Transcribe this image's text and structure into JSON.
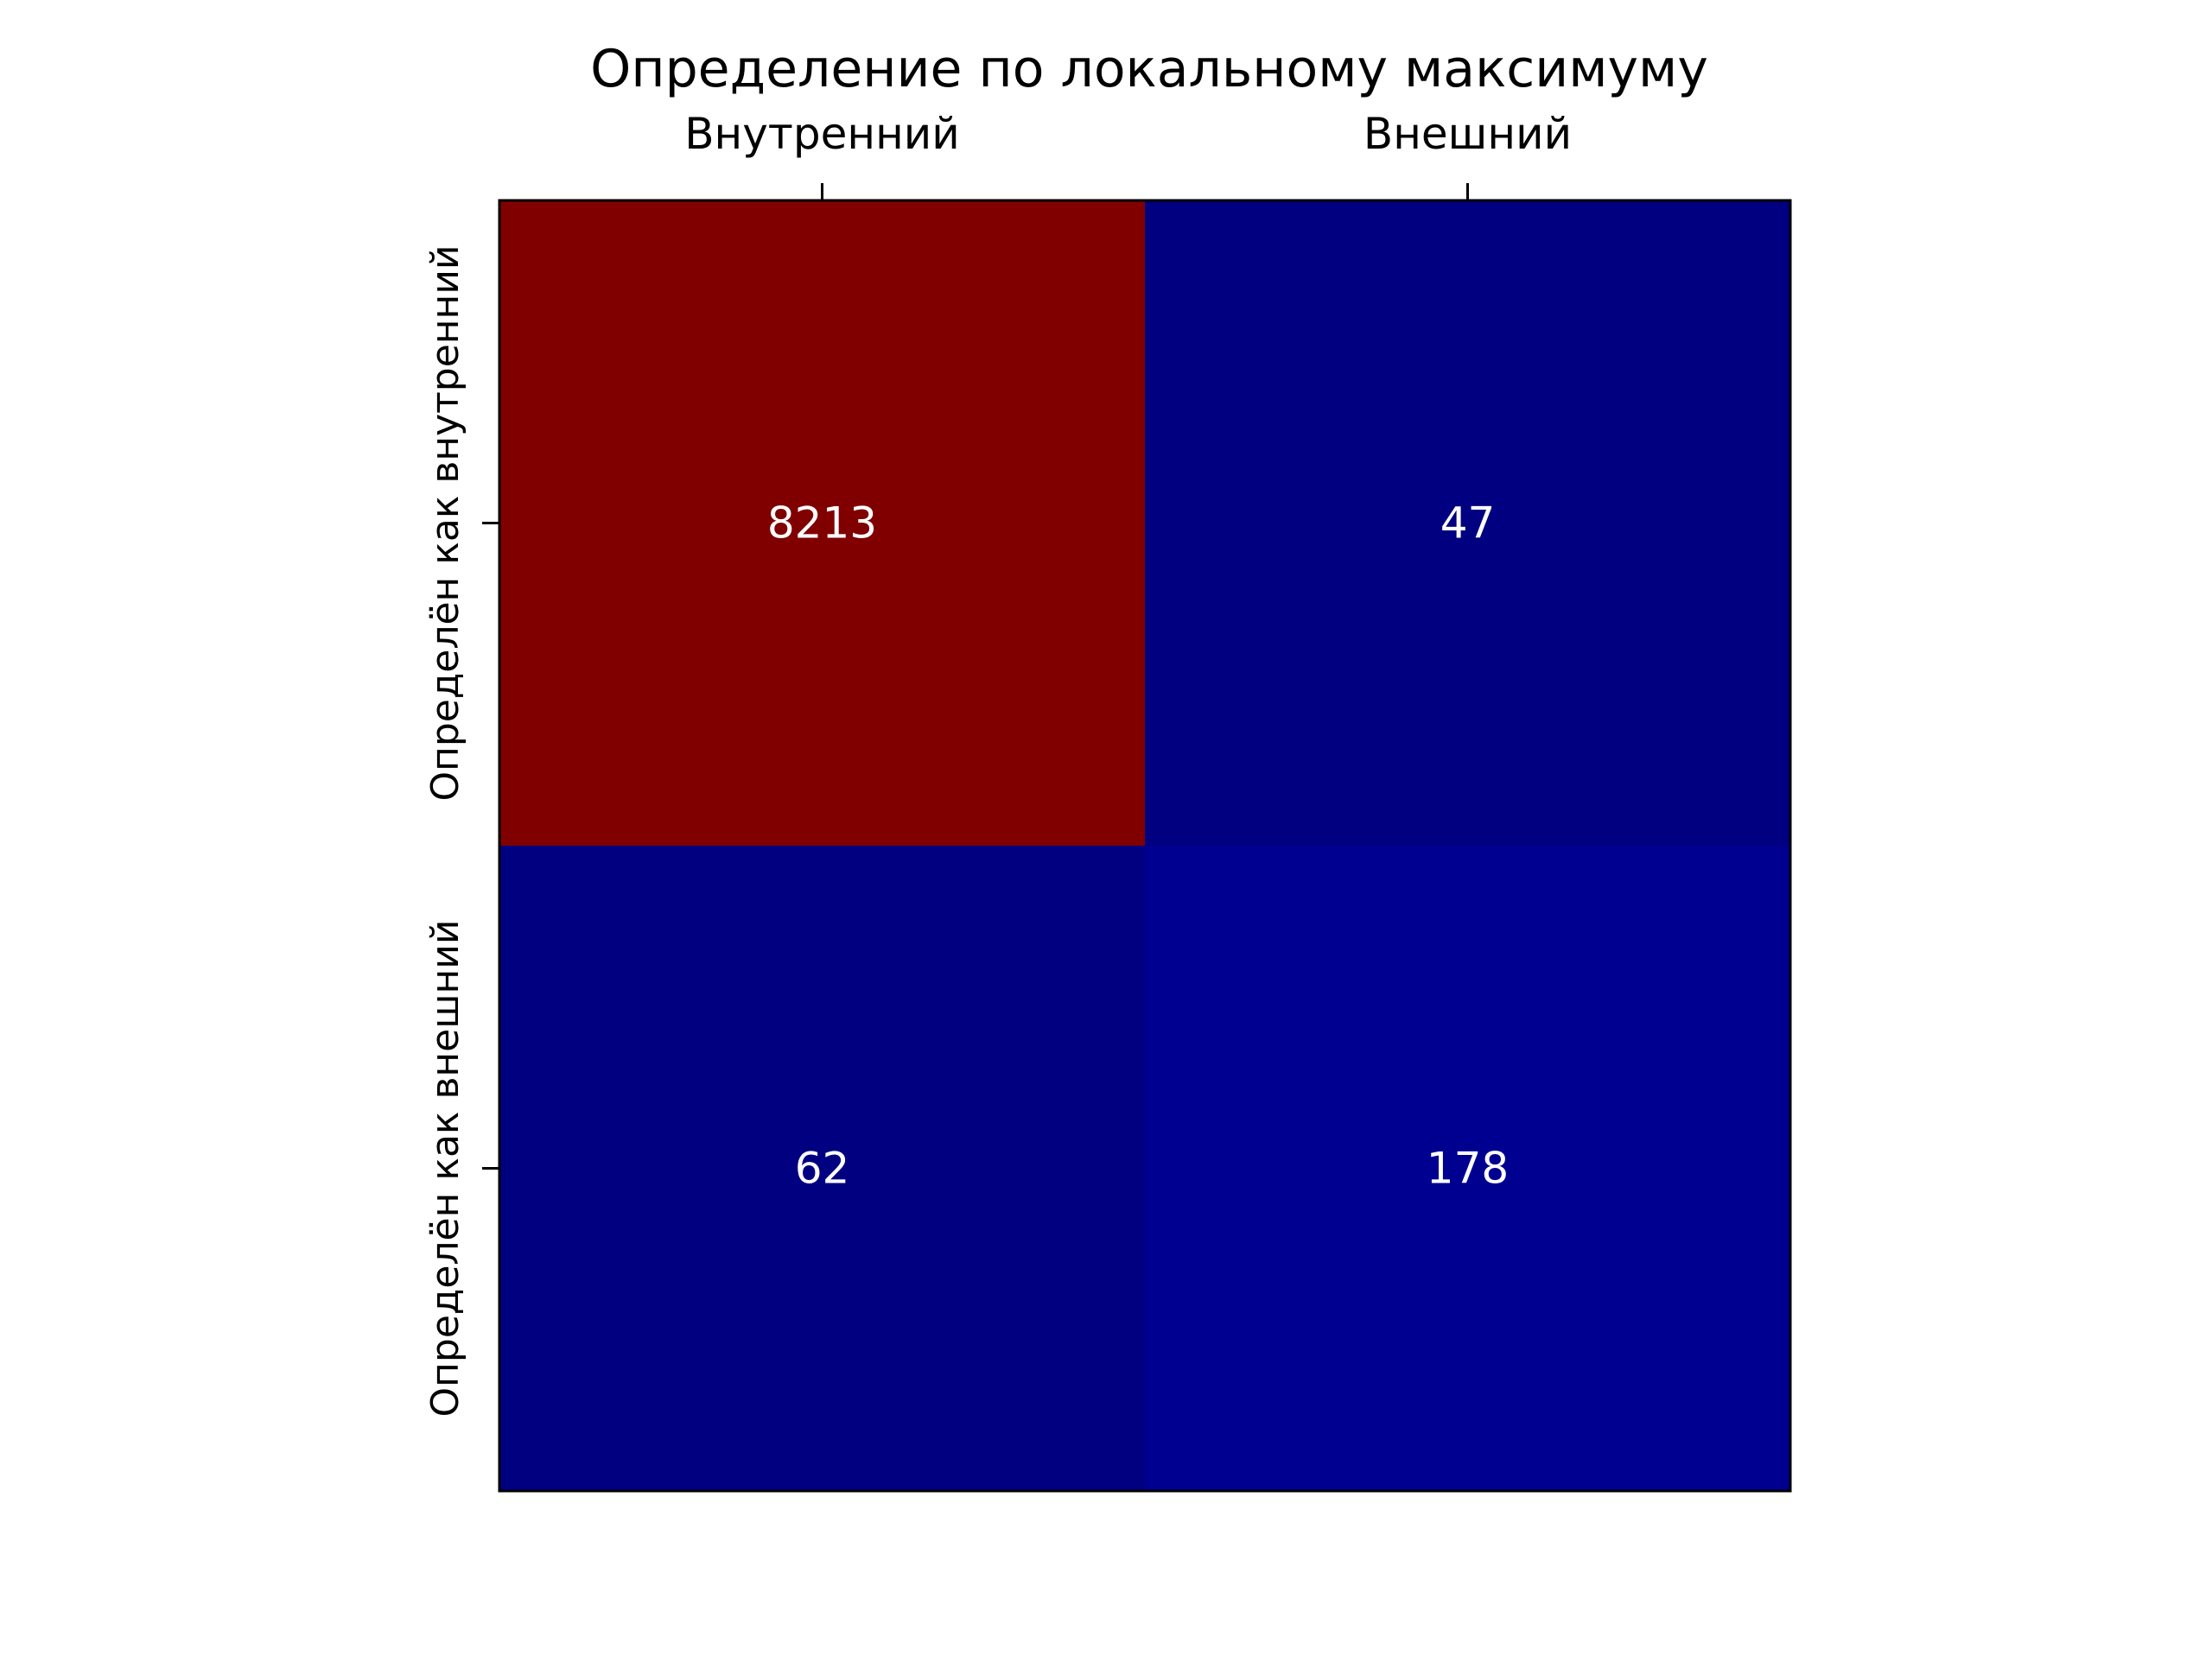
{
  "chart_data": {
    "type": "heatmap",
    "title": "Определение по локальному максимуму",
    "x_categories": [
      "Внутренний",
      "Внешний"
    ],
    "y_categories": [
      "Определён как внутренний",
      "Определён как внешний"
    ],
    "values": [
      [
        8213,
        47
      ],
      [
        62,
        178
      ]
    ],
    "x_axis_position": "top",
    "grid": false,
    "legend": "none",
    "colormap": "jet",
    "colors": {
      "low": "#00007f",
      "high": "#7f0000",
      "annotation_text": "#ffffff",
      "axis": "#000000"
    }
  }
}
